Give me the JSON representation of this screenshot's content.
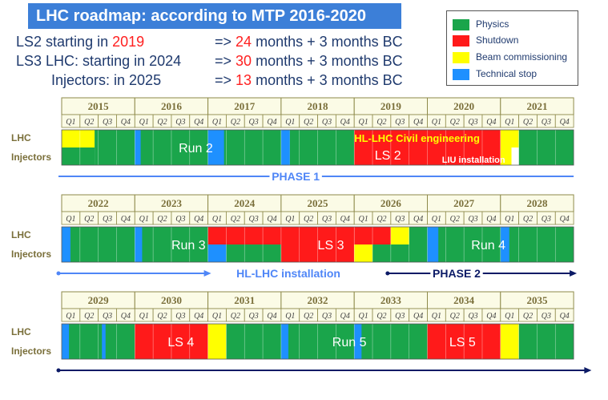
{
  "title": "LHC roadmap: according to MTP 2016-2020",
  "info": [
    {
      "prefix": "LS2",
      "text": "starting in",
      "highlight": "2019",
      "arrow": "=>",
      "months": "24",
      "rest": "months + 3 months BC"
    },
    {
      "prefix": "LS3",
      "text": "LHC: starting in 2024",
      "highlight": "",
      "arrow": "=>",
      "months": "30",
      "rest": "months + 3 months BC"
    },
    {
      "prefix": "",
      "text": "Injectors: in 2025",
      "highlight": "",
      "arrow": "=>",
      "months": "13",
      "rest": "months + 3 months BC"
    }
  ],
  "legend": [
    {
      "label": "Physics",
      "color": "#1aa54b"
    },
    {
      "label": "Shutdown",
      "color": "#ff1a1a"
    },
    {
      "label": "Beam commissioning",
      "color": "#ffff00"
    },
    {
      "label": "Technical stop",
      "color": "#1e90ff"
    }
  ],
  "colors": {
    "physics": "#1aa54b",
    "shutdown": "#ff1a1a",
    "commissioning": "#ffff00",
    "technical": "#1e90ff",
    "header_fill": "#fbfbe6",
    "header_border": "#8e8a4a",
    "header_text": "#7a6f3a",
    "phase1": "#4f86f7",
    "phase2": "#0b1a66"
  },
  "quarter_labels": [
    "Q1",
    "Q2",
    "Q3",
    "Q4"
  ],
  "row_labels": {
    "lhc": "LHC",
    "injectors": "Injectors"
  },
  "sections": [
    {
      "years": [
        "2015",
        "2016",
        "2017",
        "2018",
        "2019",
        "2020",
        "2021"
      ],
      "blocks": [
        {
          "track": "lhc",
          "start": 0.0,
          "end": 0.45,
          "kind": "commissioning"
        },
        {
          "track": "inj",
          "start": 0.0,
          "end": 0.45,
          "kind": "physics"
        },
        {
          "track": "both",
          "start": 0.45,
          "end": 3.0,
          "kind": "physics"
        },
        {
          "track": "both",
          "start": 1.0,
          "end": 1.08,
          "kind": "technical"
        },
        {
          "track": "both",
          "start": 2.0,
          "end": 2.22,
          "kind": "technical"
        },
        {
          "track": "both",
          "start": 3.0,
          "end": 3.12,
          "kind": "technical"
        },
        {
          "track": "both",
          "start": 3.12,
          "end": 4.0,
          "kind": "physics"
        },
        {
          "track": "both",
          "start": 4.0,
          "end": 6.0,
          "kind": "shutdown"
        },
        {
          "track": "lhc",
          "start": 6.0,
          "end": 6.25,
          "kind": "commissioning"
        },
        {
          "track": "inj",
          "start": 6.0,
          "end": 6.15,
          "kind": "commissioning"
        },
        {
          "track": "both",
          "start": 6.25,
          "end": 7.0,
          "kind": "physics"
        }
      ],
      "labels": [
        {
          "text": "Run 2",
          "pos": 1.6,
          "track": "center",
          "color": "#ffffff",
          "size": 16,
          "weight": "normal"
        },
        {
          "text": "LS 2",
          "pos": 4.28,
          "track": "inj",
          "color": "#ffffff",
          "size": 16,
          "weight": "normal"
        },
        {
          "text": "LIU installation",
          "pos": 5.2,
          "track": "inj-low",
          "color": "#ffffff",
          "size": 11,
          "weight": "bold"
        },
        {
          "text": "HL-LHC Civil engineering",
          "pos": 4.0,
          "track": "lhc",
          "color": "#ffff00",
          "size": 13,
          "weight": "bold"
        }
      ],
      "phases": [
        {
          "text": "PHASE 1",
          "start": 0.0,
          "end": 7.0,
          "color_key": "phase1",
          "label_pos": 3.2,
          "arrow_left": false,
          "arrow_right": false
        }
      ]
    },
    {
      "years": [
        "2022",
        "2023",
        "2024",
        "2025",
        "2026",
        "2027",
        "2028"
      ],
      "blocks": [
        {
          "track": "both",
          "start": 0.0,
          "end": 2.0,
          "kind": "physics"
        },
        {
          "track": "both",
          "start": 0.0,
          "end": 0.12,
          "kind": "technical"
        },
        {
          "track": "both",
          "start": 1.0,
          "end": 1.1,
          "kind": "technical"
        },
        {
          "track": "lhc",
          "start": 2.0,
          "end": 4.0,
          "kind": "shutdown"
        },
        {
          "track": "inj",
          "start": 2.0,
          "end": 3.0,
          "kind": "physics"
        },
        {
          "track": "inj",
          "start": 2.0,
          "end": 2.25,
          "kind": "technical"
        },
        {
          "track": "inj",
          "start": 3.0,
          "end": 4.0,
          "kind": "shutdown"
        },
        {
          "track": "lhc",
          "start": 4.0,
          "end": 4.5,
          "kind": "shutdown"
        },
        {
          "track": "lhc",
          "start": 4.5,
          "end": 4.75,
          "kind": "commissioning"
        },
        {
          "track": "inj",
          "start": 4.0,
          "end": 4.25,
          "kind": "commissioning"
        },
        {
          "track": "inj",
          "start": 4.25,
          "end": 5.0,
          "kind": "physics"
        },
        {
          "track": "both",
          "start": 4.75,
          "end": 7.0,
          "kind": "physics"
        },
        {
          "track": "both",
          "start": 5.0,
          "end": 5.15,
          "kind": "technical"
        },
        {
          "track": "both",
          "start": 6.0,
          "end": 6.12,
          "kind": "technical"
        }
      ],
      "labels": [
        {
          "text": "Run 3",
          "pos": 1.5,
          "track": "center",
          "color": "#ffffff",
          "size": 16,
          "weight": "normal"
        },
        {
          "text": "LS 3",
          "pos": 3.5,
          "track": "center",
          "color": "#ffffff",
          "size": 16,
          "weight": "normal"
        },
        {
          "text": "Run 4",
          "pos": 5.6,
          "track": "center",
          "color": "#ffffff",
          "size": 16,
          "weight": "normal"
        }
      ],
      "phases": [
        {
          "text": "HL-LHC installation",
          "start": 0.0,
          "end": 2.0,
          "color_key": "phase1",
          "label_pos": 3.1,
          "arrow_left": true,
          "arrow_right": true
        },
        {
          "text": "PHASE 2",
          "start": 4.5,
          "end": 7.0,
          "color_key": "phase2",
          "label_pos": 5.4,
          "arrow_left": true,
          "arrow_right": true
        }
      ]
    },
    {
      "years": [
        "2029",
        "2030",
        "2031",
        "2032",
        "2033",
        "2034",
        "2035"
      ],
      "blocks": [
        {
          "track": "both",
          "start": 0.0,
          "end": 1.0,
          "kind": "physics"
        },
        {
          "track": "both",
          "start": 0.0,
          "end": 0.1,
          "kind": "technical"
        },
        {
          "track": "both",
          "start": 0.55,
          "end": 0.6,
          "kind": "technical"
        },
        {
          "track": "both",
          "start": 1.0,
          "end": 2.0,
          "kind": "shutdown"
        },
        {
          "track": "both",
          "start": 2.0,
          "end": 2.25,
          "kind": "commissioning"
        },
        {
          "track": "both",
          "start": 2.25,
          "end": 5.0,
          "kind": "physics"
        },
        {
          "track": "both",
          "start": 3.0,
          "end": 3.1,
          "kind": "technical"
        },
        {
          "track": "both",
          "start": 4.0,
          "end": 4.1,
          "kind": "technical"
        },
        {
          "track": "both",
          "start": 5.0,
          "end": 6.0,
          "kind": "shutdown"
        },
        {
          "track": "both",
          "start": 6.0,
          "end": 6.25,
          "kind": "commissioning"
        },
        {
          "track": "both",
          "start": 6.25,
          "end": 7.0,
          "kind": "physics"
        }
      ],
      "labels": [
        {
          "text": "LS 4",
          "pos": 1.45,
          "track": "center",
          "color": "#ffffff",
          "size": 16,
          "weight": "normal"
        },
        {
          "text": "Run 5",
          "pos": 3.7,
          "track": "center",
          "color": "#ffffff",
          "size": 16,
          "weight": "normal"
        },
        {
          "text": "LS 5",
          "pos": 5.3,
          "track": "center",
          "color": "#ffffff",
          "size": 16,
          "weight": "normal"
        }
      ],
      "phases": [
        {
          "text": "",
          "start": 0.0,
          "end": 7.2,
          "color_key": "phase2",
          "label_pos": 0,
          "arrow_left": true,
          "arrow_right": true
        }
      ]
    }
  ]
}
